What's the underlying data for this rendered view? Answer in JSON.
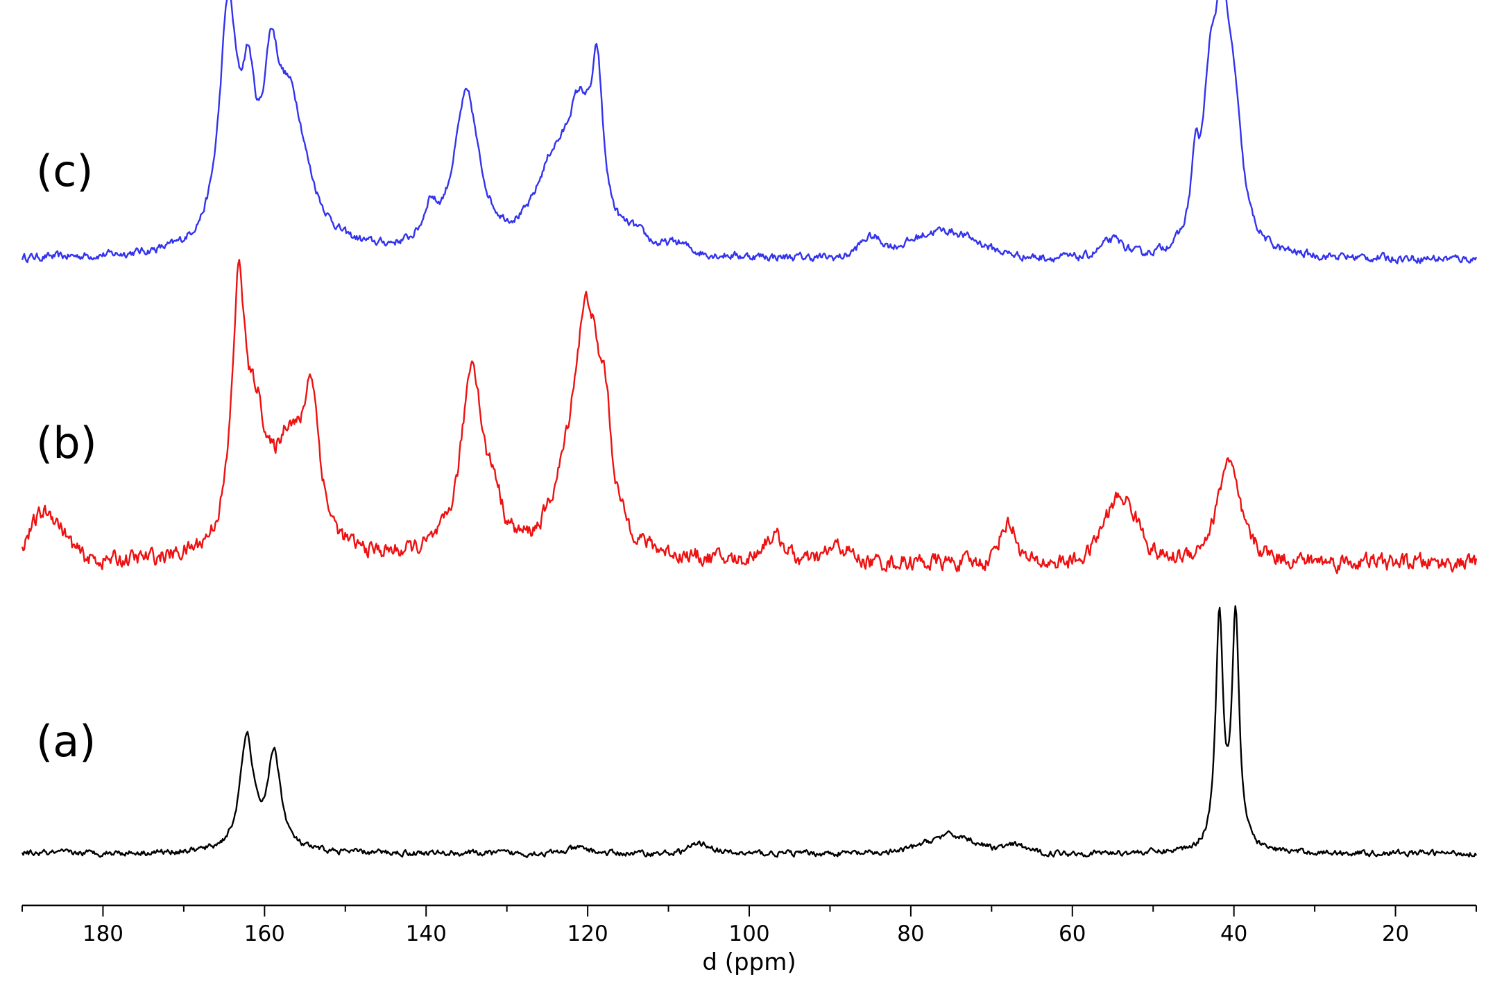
{
  "chart_data": {
    "type": "line",
    "xlabel": "d (ppm)",
    "xlim": [
      190,
      10
    ],
    "x_reversed": true,
    "x_ticks": [
      180,
      160,
      140,
      120,
      100,
      80,
      60,
      40,
      20
    ],
    "grid": false,
    "legend": "none",
    "series": [
      {
        "label": "(c)",
        "color": "#3333ee",
        "noise": 0.032,
        "baseline_bumps": [
          {
            "x": 76,
            "h": 0.12,
            "w": 6
          },
          {
            "x": 85,
            "h": 0.08,
            "w": 2
          },
          {
            "x": 55,
            "h": 0.07,
            "w": 2
          },
          {
            "x": 109,
            "h": 0.04,
            "w": 2
          },
          {
            "x": 114,
            "h": 0.05,
            "w": 2
          }
        ],
        "peaks": [
          {
            "x": 164.5,
            "h": 1.0,
            "w": 1.3
          },
          {
            "x": 162.0,
            "h": 0.52,
            "w": 1.0
          },
          {
            "x": 159.2,
            "h": 0.55,
            "w": 1.1
          },
          {
            "x": 156.8,
            "h": 0.63,
            "w": 2.6
          },
          {
            "x": 139.5,
            "h": 0.14,
            "w": 0.9
          },
          {
            "x": 135.0,
            "h": 0.68,
            "w": 1.9
          },
          {
            "x": 124.5,
            "h": 0.28,
            "w": 2.6
          },
          {
            "x": 121.0,
            "h": 0.56,
            "w": 2.2
          },
          {
            "x": 118.8,
            "h": 0.58,
            "w": 0.8
          },
          {
            "x": 44.8,
            "h": 0.3,
            "w": 0.6
          },
          {
            "x": 43.0,
            "h": 0.55,
            "w": 1.0
          },
          {
            "x": 41.5,
            "h": 0.88,
            "w": 1.1
          },
          {
            "x": 40.0,
            "h": 0.5,
            "w": 1.2
          }
        ]
      },
      {
        "label": "(b)",
        "color": "#ee1111",
        "noise": 0.06,
        "baseline_bumps": [
          {
            "x": 187,
            "h": 0.2,
            "w": 3
          },
          {
            "x": 97,
            "h": 0.1,
            "w": 2
          },
          {
            "x": 89,
            "h": 0.06,
            "w": 2
          },
          {
            "x": 68,
            "h": 0.16,
            "w": 1.5
          },
          {
            "x": 54,
            "h": 0.26,
            "w": 3
          },
          {
            "x": 122,
            "h": 0.15,
            "w": 3
          }
        ],
        "peaks": [
          {
            "x": 163.2,
            "h": 1.0,
            "w": 1.0
          },
          {
            "x": 161.0,
            "h": 0.45,
            "w": 1.6
          },
          {
            "x": 157.0,
            "h": 0.4,
            "w": 2.0
          },
          {
            "x": 154.2,
            "h": 0.59,
            "w": 1.2
          },
          {
            "x": 134.3,
            "h": 0.78,
            "w": 1.6
          },
          {
            "x": 131.5,
            "h": 0.15,
            "w": 1.0
          },
          {
            "x": 120.0,
            "h": 0.93,
            "w": 2.1
          },
          {
            "x": 117.8,
            "h": 0.3,
            "w": 0.8
          },
          {
            "x": 40.7,
            "h": 0.42,
            "w": 1.6
          }
        ]
      },
      {
        "label": "(a)",
        "color": "#000000",
        "noise": 0.022,
        "baseline_bumps": [
          {
            "x": 75,
            "h": 0.075,
            "w": 4.5
          },
          {
            "x": 106,
            "h": 0.04,
            "w": 2
          },
          {
            "x": 67,
            "h": 0.03,
            "w": 2
          },
          {
            "x": 121,
            "h": 0.02,
            "w": 2
          }
        ],
        "peaks": [
          {
            "x": 162.2,
            "h": 0.47,
            "w": 1.0
          },
          {
            "x": 158.8,
            "h": 0.4,
            "w": 1.0
          },
          {
            "x": 41.8,
            "h": 0.97,
            "w": 0.55
          },
          {
            "x": 39.8,
            "h": 0.97,
            "w": 0.55
          }
        ]
      }
    ]
  }
}
